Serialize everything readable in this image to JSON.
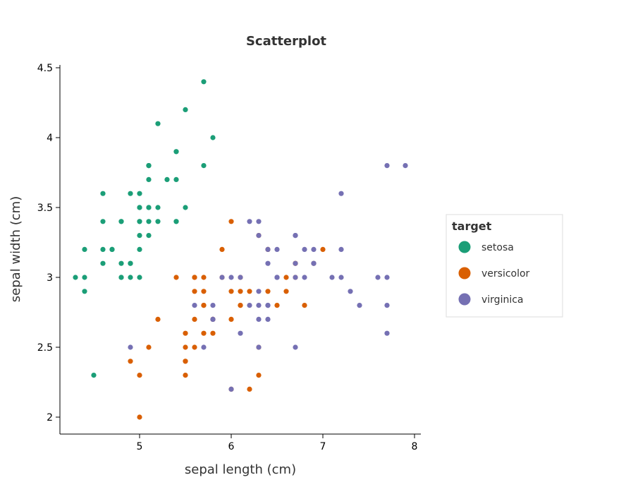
{
  "chart_data": {
    "type": "scatter",
    "title": "Scatterplot",
    "xlabel": "sepal length (cm)",
    "ylabel": "sepal width (cm)",
    "xlim": [
      4.2,
      8.1
    ],
    "ylim": [
      1.85,
      4.52
    ],
    "x_ticks": [
      "5",
      "6",
      "7",
      "8"
    ],
    "y_ticks": [
      "2",
      "2.5",
      "3",
      "3.5",
      "4",
      "4.5"
    ],
    "grid": false,
    "legend_title": "target",
    "legend_position": "right",
    "series": [
      {
        "name": "setosa",
        "color": "#1b9e77",
        "points": [
          [
            5.1,
            3.5
          ],
          [
            4.9,
            3.0
          ],
          [
            4.7,
            3.2
          ],
          [
            4.6,
            3.1
          ],
          [
            5.0,
            3.6
          ],
          [
            5.4,
            3.9
          ],
          [
            4.6,
            3.4
          ],
          [
            5.0,
            3.4
          ],
          [
            4.4,
            2.9
          ],
          [
            4.9,
            3.1
          ],
          [
            5.4,
            3.7
          ],
          [
            4.8,
            3.4
          ],
          [
            4.8,
            3.0
          ],
          [
            4.3,
            3.0
          ],
          [
            5.8,
            4.0
          ],
          [
            5.7,
            4.4
          ],
          [
            5.4,
            3.9
          ],
          [
            5.1,
            3.5
          ],
          [
            5.7,
            3.8
          ],
          [
            5.1,
            3.8
          ],
          [
            5.4,
            3.4
          ],
          [
            5.1,
            3.7
          ],
          [
            4.6,
            3.6
          ],
          [
            5.1,
            3.3
          ],
          [
            4.8,
            3.4
          ],
          [
            5.0,
            3.0
          ],
          [
            5.0,
            3.4
          ],
          [
            5.2,
            3.5
          ],
          [
            5.2,
            3.4
          ],
          [
            4.7,
            3.2
          ],
          [
            4.8,
            3.1
          ],
          [
            5.4,
            3.4
          ],
          [
            5.2,
            4.1
          ],
          [
            5.5,
            4.2
          ],
          [
            4.9,
            3.1
          ],
          [
            5.0,
            3.2
          ],
          [
            5.5,
            3.5
          ],
          [
            4.9,
            3.6
          ],
          [
            4.4,
            3.0
          ],
          [
            5.1,
            3.4
          ],
          [
            5.0,
            3.5
          ],
          [
            4.5,
            2.3
          ],
          [
            4.4,
            3.2
          ],
          [
            5.0,
            3.5
          ],
          [
            5.1,
            3.8
          ],
          [
            4.8,
            3.0
          ],
          [
            5.1,
            3.8
          ],
          [
            4.6,
            3.2
          ],
          [
            5.3,
            3.7
          ],
          [
            5.0,
            3.3
          ]
        ]
      },
      {
        "name": "versicolor",
        "color": "#d95f02",
        "points": [
          [
            7.0,
            3.2
          ],
          [
            6.4,
            3.2
          ],
          [
            6.9,
            3.1
          ],
          [
            5.5,
            2.3
          ],
          [
            6.5,
            2.8
          ],
          [
            5.7,
            2.8
          ],
          [
            6.3,
            3.3
          ],
          [
            4.9,
            2.4
          ],
          [
            6.6,
            2.9
          ],
          [
            5.2,
            2.7
          ],
          [
            5.0,
            2.0
          ],
          [
            5.9,
            3.0
          ],
          [
            6.0,
            2.2
          ],
          [
            6.1,
            2.9
          ],
          [
            5.6,
            2.9
          ],
          [
            6.7,
            3.1
          ],
          [
            5.6,
            3.0
          ],
          [
            5.8,
            2.7
          ],
          [
            6.2,
            2.2
          ],
          [
            5.6,
            2.5
          ],
          [
            5.9,
            3.2
          ],
          [
            6.1,
            2.8
          ],
          [
            6.3,
            2.5
          ],
          [
            6.1,
            2.8
          ],
          [
            6.4,
            2.9
          ],
          [
            6.6,
            3.0
          ],
          [
            6.8,
            2.8
          ],
          [
            6.7,
            3.0
          ],
          [
            6.0,
            2.9
          ],
          [
            5.7,
            2.6
          ],
          [
            5.5,
            2.4
          ],
          [
            5.5,
            2.4
          ],
          [
            5.8,
            2.7
          ],
          [
            6.0,
            2.7
          ],
          [
            5.4,
            3.0
          ],
          [
            6.0,
            3.4
          ],
          [
            6.7,
            3.1
          ],
          [
            6.3,
            2.3
          ],
          [
            5.6,
            3.0
          ],
          [
            5.5,
            2.5
          ],
          [
            5.5,
            2.6
          ],
          [
            6.1,
            3.0
          ],
          [
            5.8,
            2.6
          ],
          [
            5.0,
            2.3
          ],
          [
            5.6,
            2.7
          ],
          [
            5.7,
            3.0
          ],
          [
            5.7,
            2.9
          ],
          [
            6.2,
            2.9
          ],
          [
            5.1,
            2.5
          ],
          [
            5.7,
            2.8
          ]
        ]
      },
      {
        "name": "virginica",
        "color": "#7570b3",
        "points": [
          [
            6.3,
            3.3
          ],
          [
            5.8,
            2.7
          ],
          [
            7.1,
            3.0
          ],
          [
            6.3,
            2.9
          ],
          [
            6.5,
            3.0
          ],
          [
            7.6,
            3.0
          ],
          [
            4.9,
            2.5
          ],
          [
            7.3,
            2.9
          ],
          [
            6.7,
            2.5
          ],
          [
            7.2,
            3.6
          ],
          [
            6.5,
            3.2
          ],
          [
            6.4,
            2.7
          ],
          [
            6.8,
            3.0
          ],
          [
            5.7,
            2.5
          ],
          [
            5.8,
            2.8
          ],
          [
            6.4,
            3.2
          ],
          [
            6.5,
            3.0
          ],
          [
            7.7,
            3.8
          ],
          [
            7.7,
            2.6
          ],
          [
            6.0,
            2.2
          ],
          [
            6.9,
            3.2
          ],
          [
            5.6,
            2.8
          ],
          [
            7.7,
            2.8
          ],
          [
            6.3,
            2.7
          ],
          [
            6.7,
            3.3
          ],
          [
            7.2,
            3.2
          ],
          [
            6.2,
            2.8
          ],
          [
            6.1,
            3.0
          ],
          [
            6.4,
            2.8
          ],
          [
            7.2,
            3.0
          ],
          [
            7.4,
            2.8
          ],
          [
            7.9,
            3.8
          ],
          [
            6.4,
            2.8
          ],
          [
            6.3,
            2.8
          ],
          [
            6.1,
            2.6
          ],
          [
            7.7,
            3.0
          ],
          [
            6.3,
            3.4
          ],
          [
            6.4,
            3.1
          ],
          [
            6.0,
            3.0
          ],
          [
            6.9,
            3.1
          ],
          [
            6.7,
            3.1
          ],
          [
            6.9,
            3.1
          ],
          [
            5.8,
            2.7
          ],
          [
            6.8,
            3.2
          ],
          [
            6.7,
            3.3
          ],
          [
            6.7,
            3.0
          ],
          [
            6.3,
            2.5
          ],
          [
            6.5,
            3.0
          ],
          [
            6.2,
            3.4
          ],
          [
            5.9,
            3.0
          ]
        ]
      }
    ]
  }
}
